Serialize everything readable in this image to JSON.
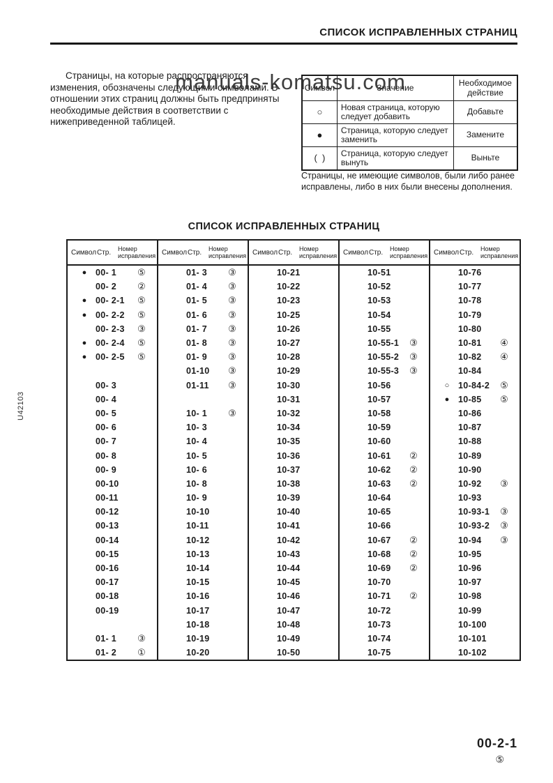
{
  "page": {
    "header_title": "СПИСОК ИСПРАВЛЕННЫХ СТРАНИЦ",
    "intro_text": "Страницы, на которые распространяются изменения, обозначены следующими символами. В отношении этих страниц должны быть предприняты необходимые действия в соответствии с нижеприведенной таблицей.",
    "watermark": "manuals-komatsu.com",
    "note_text": "Страницы, не имеющие символов, были либо ранее исправлены, либо в них были внесены дополнения.",
    "side_label": "U42103",
    "page_number": "00-2-1",
    "page_revision": "⑤"
  },
  "legend_table": {
    "headers": [
      "Символ",
      "Значение",
      "Необходимое действие"
    ],
    "rows": [
      {
        "symbol": "○",
        "meaning": "Новая страница, которую следует добавить",
        "action": "Добавьте"
      },
      {
        "symbol": "●",
        "meaning": "Страница, которую следует заменить",
        "action": "Замените"
      },
      {
        "symbol": "(  )",
        "meaning": "Страница, которую следует вынуть",
        "action": "Выньте"
      }
    ]
  },
  "revision_table": {
    "title": "СПИСОК ИСПРАВЛЕННЫХ СТРАНИЦ",
    "group_headers": [
      "Символ",
      "Стр.",
      "Номер исправления"
    ],
    "columns": [
      [
        [
          "●",
          "00- 1",
          "⑤"
        ],
        [
          "",
          "00- 2",
          "②"
        ],
        [
          "●",
          "00- 2-1",
          "⑤"
        ],
        [
          "●",
          "00- 2-2",
          "⑤"
        ],
        [
          "",
          "00- 2-3",
          "③"
        ],
        [
          "●",
          "00- 2-4",
          "⑤"
        ],
        [
          "●",
          "00- 2-5",
          "⑤"
        ],
        [
          "",
          "",
          ""
        ],
        [
          "",
          "00- 3",
          ""
        ],
        [
          "",
          "00- 4",
          ""
        ],
        [
          "",
          "00- 5",
          ""
        ],
        [
          "",
          "00- 6",
          ""
        ],
        [
          "",
          "00- 7",
          ""
        ],
        [
          "",
          "00- 8",
          ""
        ],
        [
          "",
          "00- 9",
          ""
        ],
        [
          "",
          "00-10",
          ""
        ],
        [
          "",
          "00-11",
          ""
        ],
        [
          "",
          "00-12",
          ""
        ],
        [
          "",
          "00-13",
          ""
        ],
        [
          "",
          "00-14",
          ""
        ],
        [
          "",
          "00-15",
          ""
        ],
        [
          "",
          "00-16",
          ""
        ],
        [
          "",
          "00-17",
          ""
        ],
        [
          "",
          "00-18",
          ""
        ],
        [
          "",
          "00-19",
          ""
        ],
        [
          "",
          "",
          ""
        ],
        [
          "",
          "01- 1",
          "③"
        ],
        [
          "",
          "01- 2",
          "①"
        ]
      ],
      [
        [
          "",
          "01- 3",
          "③"
        ],
        [
          "",
          "01- 4",
          "③"
        ],
        [
          "",
          "01- 5",
          "③"
        ],
        [
          "",
          "01- 6",
          "③"
        ],
        [
          "",
          "01- 7",
          "③"
        ],
        [
          "",
          "01- 8",
          "③"
        ],
        [
          "",
          "01- 9",
          "③"
        ],
        [
          "",
          "01-10",
          "③"
        ],
        [
          "",
          "01-11",
          "③"
        ],
        [
          "",
          "",
          ""
        ],
        [
          "",
          "10- 1",
          "③"
        ],
        [
          "",
          "10- 3",
          ""
        ],
        [
          "",
          "10- 4",
          ""
        ],
        [
          "",
          "10- 5",
          ""
        ],
        [
          "",
          "10- 6",
          ""
        ],
        [
          "",
          "10- 8",
          ""
        ],
        [
          "",
          "10- 9",
          ""
        ],
        [
          "",
          "10-10",
          ""
        ],
        [
          "",
          "10-11",
          ""
        ],
        [
          "",
          "10-12",
          ""
        ],
        [
          "",
          "10-13",
          ""
        ],
        [
          "",
          "10-14",
          ""
        ],
        [
          "",
          "10-15",
          ""
        ],
        [
          "",
          "10-16",
          ""
        ],
        [
          "",
          "10-17",
          ""
        ],
        [
          "",
          "10-18",
          ""
        ],
        [
          "",
          "10-19",
          ""
        ],
        [
          "",
          "10-20",
          ""
        ]
      ],
      [
        [
          "",
          "10-21",
          ""
        ],
        [
          "",
          "10-22",
          ""
        ],
        [
          "",
          "10-23",
          ""
        ],
        [
          "",
          "10-25",
          ""
        ],
        [
          "",
          "10-26",
          ""
        ],
        [
          "",
          "10-27",
          ""
        ],
        [
          "",
          "10-28",
          ""
        ],
        [
          "",
          "10-29",
          ""
        ],
        [
          "",
          "10-30",
          ""
        ],
        [
          "",
          "10-31",
          ""
        ],
        [
          "",
          "10-32",
          ""
        ],
        [
          "",
          "10-34",
          ""
        ],
        [
          "",
          "10-35",
          ""
        ],
        [
          "",
          "10-36",
          ""
        ],
        [
          "",
          "10-37",
          ""
        ],
        [
          "",
          "10-38",
          ""
        ],
        [
          "",
          "10-39",
          ""
        ],
        [
          "",
          "10-40",
          ""
        ],
        [
          "",
          "10-41",
          ""
        ],
        [
          "",
          "10-42",
          ""
        ],
        [
          "",
          "10-43",
          ""
        ],
        [
          "",
          "10-44",
          ""
        ],
        [
          "",
          "10-45",
          ""
        ],
        [
          "",
          "10-46",
          ""
        ],
        [
          "",
          "10-47",
          ""
        ],
        [
          "",
          "10-48",
          ""
        ],
        [
          "",
          "10-49",
          ""
        ],
        [
          "",
          "10-50",
          ""
        ]
      ],
      [
        [
          "",
          "10-51",
          ""
        ],
        [
          "",
          "10-52",
          ""
        ],
        [
          "",
          "10-53",
          ""
        ],
        [
          "",
          "10-54",
          ""
        ],
        [
          "",
          "10-55",
          ""
        ],
        [
          "",
          "10-55-1",
          "③"
        ],
        [
          "",
          "10-55-2",
          "③"
        ],
        [
          "",
          "10-55-3",
          "③"
        ],
        [
          "",
          "10-56",
          ""
        ],
        [
          "",
          "10-57",
          ""
        ],
        [
          "",
          "10-58",
          ""
        ],
        [
          "",
          "10-59",
          ""
        ],
        [
          "",
          "10-60",
          ""
        ],
        [
          "",
          "10-61",
          "②"
        ],
        [
          "",
          "10-62",
          "②"
        ],
        [
          "",
          "10-63",
          "②"
        ],
        [
          "",
          "10-64",
          ""
        ],
        [
          "",
          "10-65",
          ""
        ],
        [
          "",
          "10-66",
          ""
        ],
        [
          "",
          "10-67",
          "②"
        ],
        [
          "",
          "10-68",
          "②"
        ],
        [
          "",
          "10-69",
          "②"
        ],
        [
          "",
          "10-70",
          ""
        ],
        [
          "",
          "10-71",
          "②"
        ],
        [
          "",
          "10-72",
          ""
        ],
        [
          "",
          "10-73",
          ""
        ],
        [
          "",
          "10-74",
          ""
        ],
        [
          "",
          "10-75",
          ""
        ]
      ],
      [
        [
          "",
          "10-76",
          ""
        ],
        [
          "",
          "10-77",
          ""
        ],
        [
          "",
          "10-78",
          ""
        ],
        [
          "",
          "10-79",
          ""
        ],
        [
          "",
          "10-80",
          ""
        ],
        [
          "",
          "10-81",
          "④"
        ],
        [
          "",
          "10-82",
          "④"
        ],
        [
          "",
          "10-84",
          ""
        ],
        [
          "○",
          "10-84-2",
          "⑤"
        ],
        [
          "●",
          "10-85",
          "⑤"
        ],
        [
          "",
          "10-86",
          ""
        ],
        [
          "",
          "10-87",
          ""
        ],
        [
          "",
          "10-88",
          ""
        ],
        [
          "",
          "10-89",
          ""
        ],
        [
          "",
          "10-90",
          ""
        ],
        [
          "",
          "10-92",
          "③"
        ],
        [
          "",
          "10-93",
          ""
        ],
        [
          "",
          "10-93-1",
          "③"
        ],
        [
          "",
          "10-93-2",
          "③"
        ],
        [
          "",
          "10-94",
          "③"
        ],
        [
          "",
          "10-95",
          ""
        ],
        [
          "",
          "10-96",
          ""
        ],
        [
          "",
          "10-97",
          ""
        ],
        [
          "",
          "10-98",
          ""
        ],
        [
          "",
          "10-99",
          ""
        ],
        [
          "",
          "10-100",
          ""
        ],
        [
          "",
          "10-101",
          ""
        ],
        [
          "",
          "10-102",
          ""
        ]
      ]
    ]
  }
}
